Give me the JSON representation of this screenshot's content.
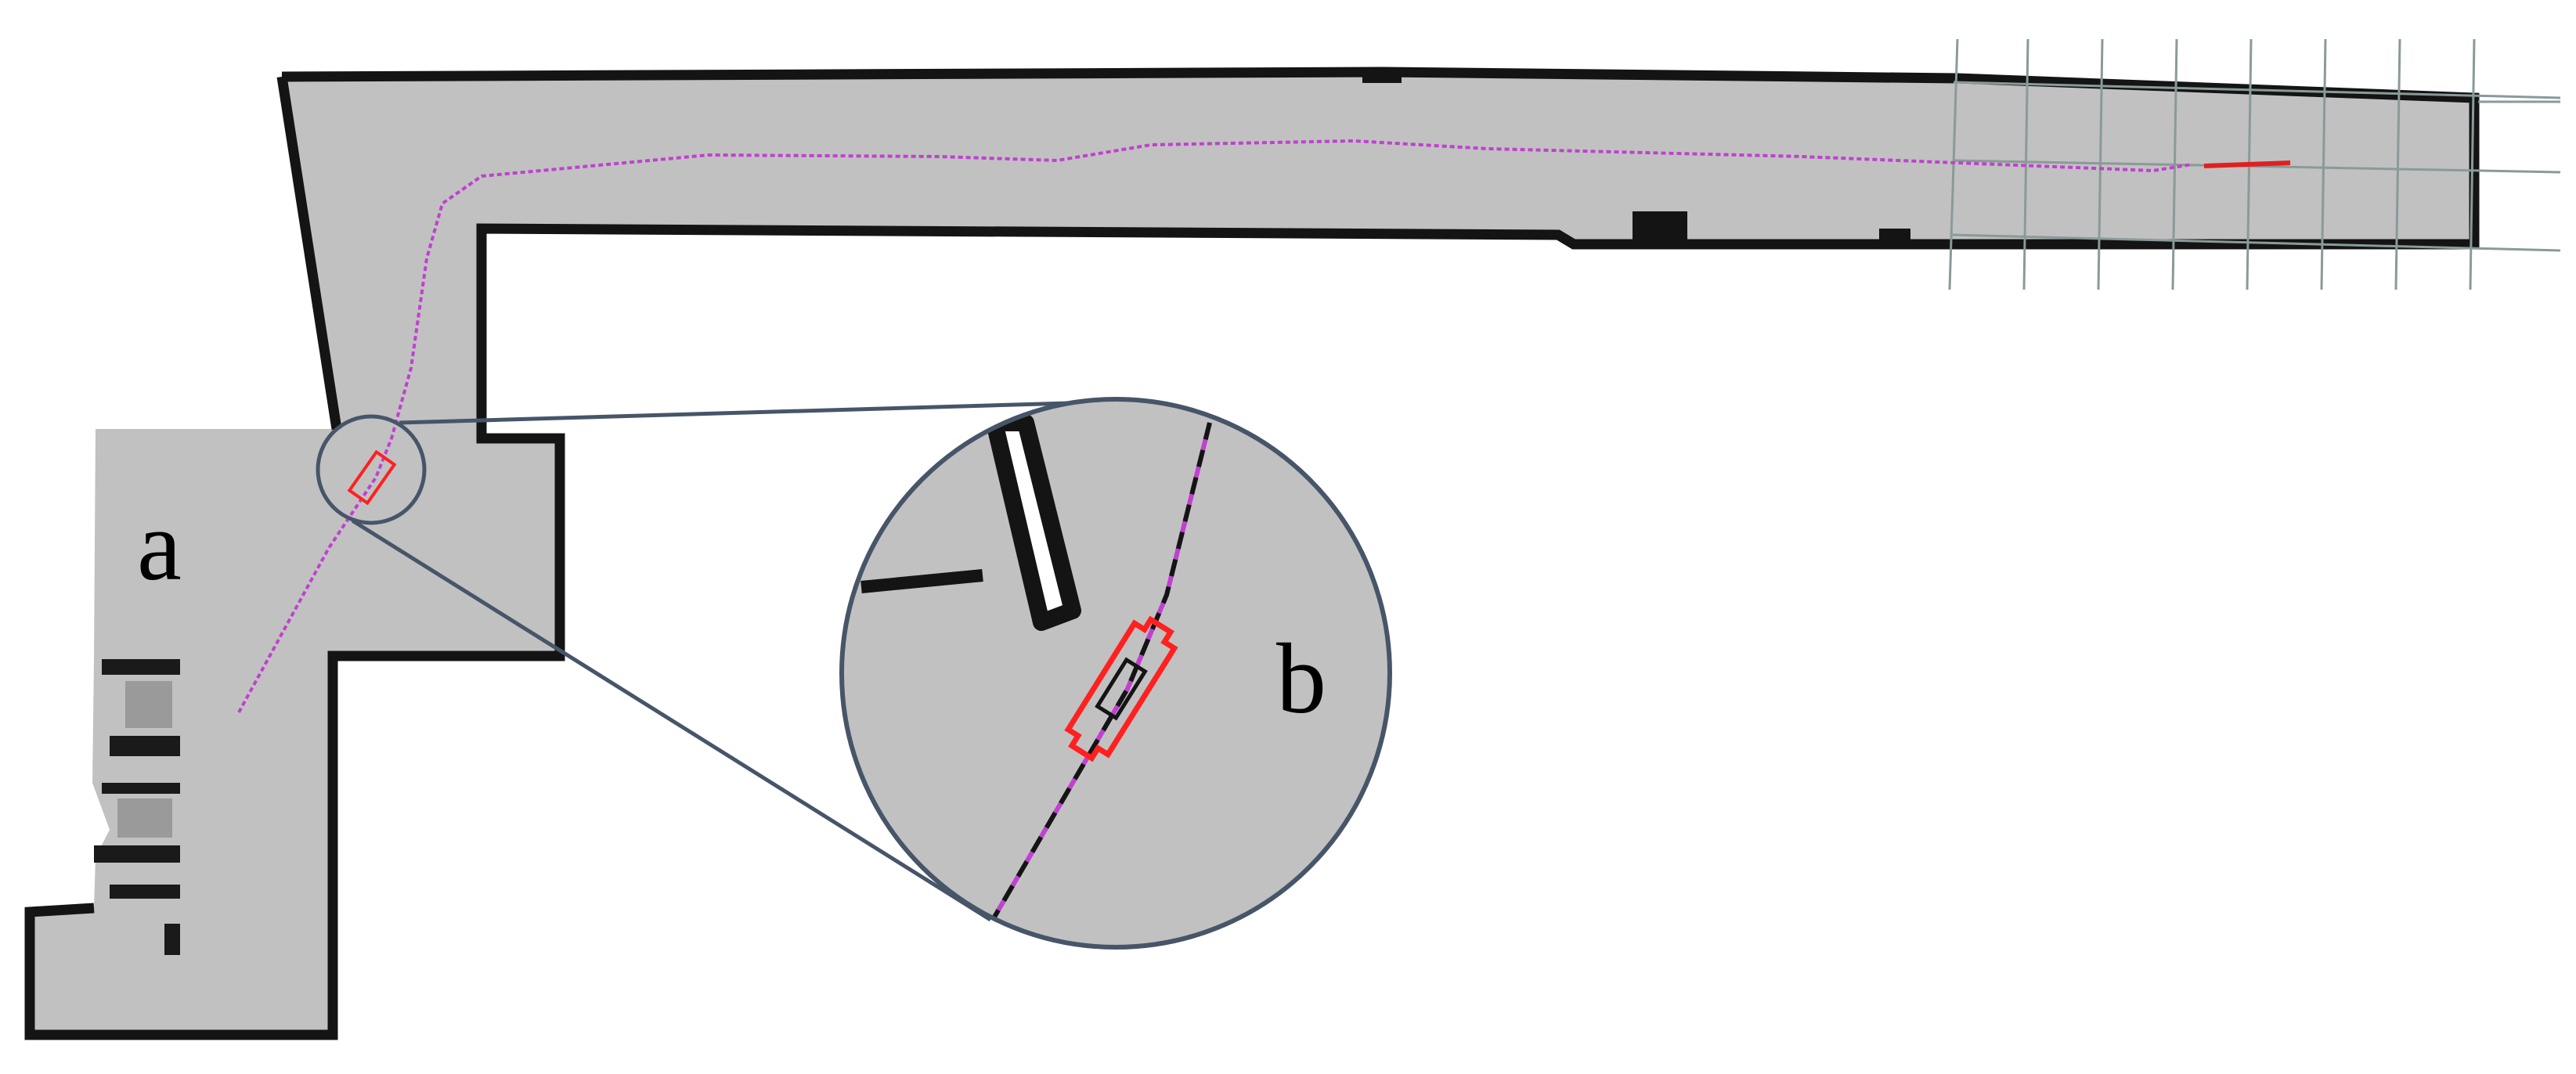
{
  "figure": {
    "panel_labels": {
      "a": "a",
      "b": "b"
    }
  },
  "colors": {
    "free_space": "#c1c1c1",
    "wall": "#141414",
    "trajectory": "#c040d0",
    "robot_footprint": "#ff2020",
    "zoom_outline": "#475569",
    "grid": "#8a9a9a",
    "background": "#ffffff"
  },
  "legend": {
    "trajectory": "purple-dashed-path",
    "robot": "red-rectangle-footprint"
  }
}
